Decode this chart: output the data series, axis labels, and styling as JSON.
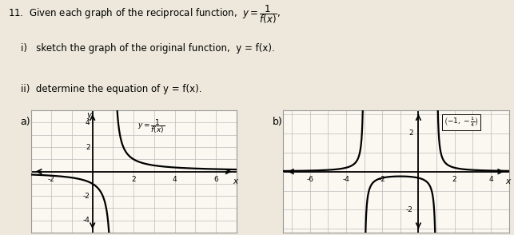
{
  "title_text": "11.  Given each graph of the reciprocal function,",
  "title_math": "y = 1/f(x)",
  "subtitle1": "i)   sketch the graph of the original function,  y = f(x).",
  "subtitle2": "ii)  determine the equation of y = f(x).",
  "label_a": "a)",
  "label_b": "b)",
  "graph_a": {
    "xlim": [
      -3,
      7
    ],
    "ylim": [
      -5,
      5
    ],
    "xticks": [
      -2,
      2,
      4,
      6
    ],
    "yticks": [
      -4,
      -2,
      2,
      4
    ],
    "asymptote_x": 1,
    "xlabel": "x",
    "ylabel": "y"
  },
  "graph_b": {
    "xlim": [
      -7.5,
      5
    ],
    "ylim": [
      -3.2,
      3.2
    ],
    "xticks": [
      -6,
      -4,
      -2,
      2,
      4
    ],
    "yticks": [
      -2,
      2
    ],
    "asymptote_x1": -3,
    "asymptote_x2": 1,
    "xlabel": "x"
  },
  "background_color": "#ede8db",
  "grid_color": "#bbbbbb",
  "curve_color": "#000000",
  "axis_color": "#000000",
  "text_color": "#000000"
}
